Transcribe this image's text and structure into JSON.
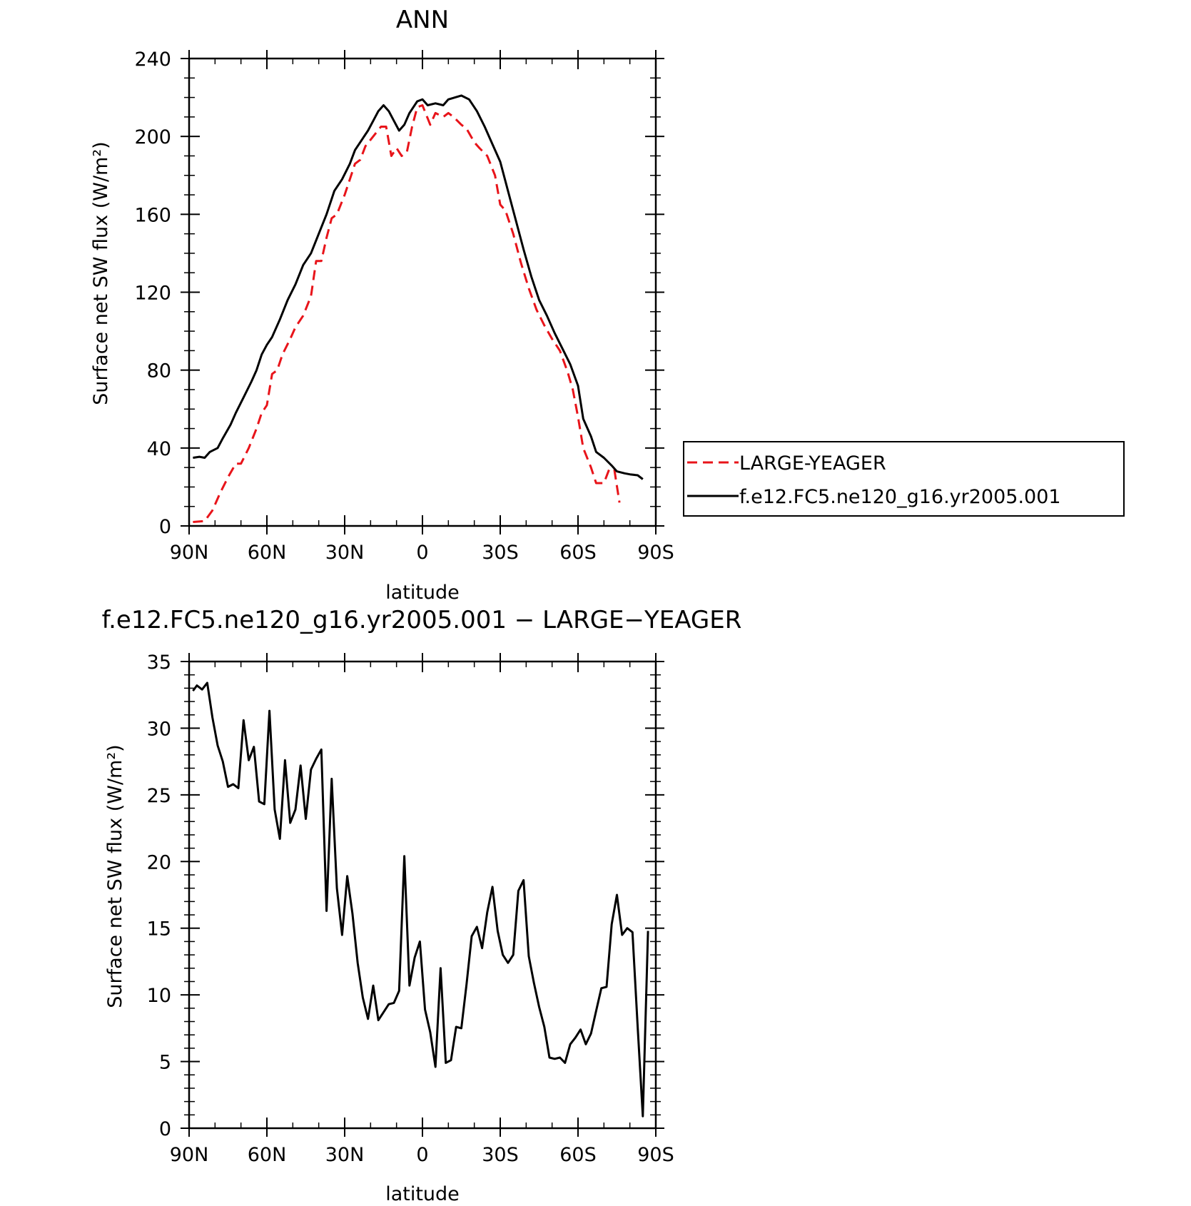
{
  "chart_data": [
    {
      "type": "line",
      "title": "ANN",
      "xlabel": "latitude",
      "ylabel": "Surface net SW flux (W/m²)",
      "xlim": [
        90,
        -90
      ],
      "ylim": [
        0,
        240
      ],
      "x_ticks": [
        90,
        60,
        30,
        0,
        -30,
        -60,
        -90
      ],
      "x_tick_labels": [
        "90N",
        "60N",
        "30N",
        "0",
        "30S",
        "60S",
        "90S"
      ],
      "y_ticks": [
        0,
        40,
        80,
        120,
        160,
        200,
        240
      ],
      "y_tick_labels": [
        "0",
        "40",
        "80",
        "120",
        "160",
        "200",
        "240"
      ],
      "legend_position": "right",
      "series": [
        {
          "name": "LARGE-YEAGER",
          "color": "#e8141a",
          "dash": "dashed",
          "points": [
            [
              88.5,
              2
            ],
            [
              84,
              2.5
            ],
            [
              81,
              8
            ],
            [
              78,
              17
            ],
            [
              75,
              25
            ],
            [
              72,
              32
            ],
            [
              70,
              32
            ],
            [
              67,
              40
            ],
            [
              64,
              50
            ],
            [
              62,
              58
            ],
            [
              60,
              62
            ],
            [
              58,
              78
            ],
            [
              56,
              80
            ],
            [
              54,
              88
            ],
            [
              51,
              96
            ],
            [
              49,
              102
            ],
            [
              46,
              108
            ],
            [
              43,
              118
            ],
            [
              41,
              136
            ],
            [
              39,
              136
            ],
            [
              37,
              148
            ],
            [
              35,
              158
            ],
            [
              33,
              160
            ],
            [
              30,
              170
            ],
            [
              28,
              178
            ],
            [
              26,
              186
            ],
            [
              24,
              188
            ],
            [
              22,
              195
            ],
            [
              19,
              200
            ],
            [
              16,
              205
            ],
            [
              14,
              205
            ],
            [
              12,
              190
            ],
            [
              10,
              194
            ],
            [
              8,
              190
            ],
            [
              6,
              192
            ],
            [
              4,
              205
            ],
            [
              2,
              215
            ],
            [
              0,
              216
            ],
            [
              -3,
              206
            ],
            [
              -5,
              212
            ],
            [
              -8,
              210
            ],
            [
              -10,
              212
            ],
            [
              -12,
              210
            ],
            [
              -15,
              206
            ],
            [
              -17,
              204
            ],
            [
              -20,
              197
            ],
            [
              -22,
              194
            ],
            [
              -25,
              190
            ],
            [
              -28,
              180
            ],
            [
              -30,
              165
            ],
            [
              -32,
              162
            ],
            [
              -35,
              150
            ],
            [
              -38,
              135
            ],
            [
              -41,
              122
            ],
            [
              -44,
              111
            ],
            [
              -47,
              103
            ],
            [
              -50,
              96
            ],
            [
              -53,
              90
            ],
            [
              -56,
              79
            ],
            [
              -58,
              70
            ],
            [
              -60,
              56
            ],
            [
              -62,
              40
            ],
            [
              -65,
              30
            ],
            [
              -67,
              22
            ],
            [
              -70,
              22
            ],
            [
              -72,
              29
            ],
            [
              -74,
              29
            ],
            [
              -76,
              12
            ]
          ]
        },
        {
          "name": "f.e12.FC5.ne120_g16.yr2005.001",
          "color": "#000000",
          "dash": "solid",
          "points": [
            [
              88.5,
              35
            ],
            [
              86,
              35.5
            ],
            [
              84,
              35
            ],
            [
              82,
              38
            ],
            [
              79,
              40
            ],
            [
              77,
              45
            ],
            [
              74,
              52
            ],
            [
              72,
              58
            ],
            [
              69,
              66
            ],
            [
              66,
              74
            ],
            [
              64,
              80
            ],
            [
              62,
              88
            ],
            [
              60,
              93
            ],
            [
              58,
              97
            ],
            [
              55,
              106
            ],
            [
              52,
              116
            ],
            [
              49,
              124
            ],
            [
              46,
              134
            ],
            [
              43,
              140
            ],
            [
              40,
              150
            ],
            [
              37,
              160
            ],
            [
              34,
              172
            ],
            [
              31,
              178
            ],
            [
              28,
              186
            ],
            [
              26,
              193
            ],
            [
              23,
              199
            ],
            [
              21,
              203
            ],
            [
              19,
              208
            ],
            [
              17,
              213
            ],
            [
              15,
              216
            ],
            [
              13,
              213
            ],
            [
              11,
              208
            ],
            [
              9,
              203
            ],
            [
              7,
              206
            ],
            [
              5,
              212
            ],
            [
              2,
              218
            ],
            [
              0,
              219
            ],
            [
              -2,
              216
            ],
            [
              -5,
              217
            ],
            [
              -8,
              216
            ],
            [
              -10,
              219
            ],
            [
              -15,
              221
            ],
            [
              -18,
              219
            ],
            [
              -21,
              213
            ],
            [
              -24,
              205
            ],
            [
              -27,
              196
            ],
            [
              -30,
              187
            ],
            [
              -33,
              172
            ],
            [
              -36,
              157
            ],
            [
              -39,
              142
            ],
            [
              -42,
              128
            ],
            [
              -45,
              116
            ],
            [
              -48,
              108
            ],
            [
              -51,
              99
            ],
            [
              -54,
              91
            ],
            [
              -57,
              83
            ],
            [
              -60,
              72
            ],
            [
              -62,
              55
            ],
            [
              -65,
              46
            ],
            [
              -67,
              38
            ],
            [
              -70,
              35
            ],
            [
              -73,
              31
            ],
            [
              -75,
              28
            ],
            [
              -78,
              27
            ],
            [
              -80,
              26.5
            ],
            [
              -83,
              26
            ],
            [
              -85,
              24
            ]
          ]
        }
      ]
    },
    {
      "type": "line",
      "title": "f.e12.FC5.ne120_g16.yr2005.001 − LARGE−YEAGER",
      "xlabel": "latitude",
      "ylabel": "Surface net SW flux (W/m²)",
      "xlim": [
        90,
        -90
      ],
      "ylim": [
        0,
        35
      ],
      "x_ticks": [
        90,
        60,
        30,
        0,
        -30,
        -60,
        -90
      ],
      "x_tick_labels": [
        "90N",
        "60N",
        "30N",
        "0",
        "30S",
        "60S",
        "90S"
      ],
      "y_ticks": [
        0,
        5,
        10,
        15,
        20,
        25,
        30,
        35
      ],
      "y_tick_labels": [
        "0",
        "5",
        "10",
        "15",
        "20",
        "25",
        "30",
        "35"
      ],
      "series": [
        {
          "color": "#000000",
          "dash": "solid",
          "points": [
            [
              88.5,
              32.8
            ],
            [
              87,
              33.2
            ],
            [
              85,
              32.9
            ],
            [
              83,
              33.4
            ],
            [
              81,
              30.8
            ],
            [
              79,
              28.7
            ],
            [
              77,
              27.5
            ],
            [
              75,
              25.6
            ],
            [
              73,
              25.8
            ],
            [
              71,
              25.5
            ],
            [
              69,
              30.6
            ],
            [
              67,
              27.6
            ],
            [
              65,
              28.6
            ],
            [
              63,
              24.5
            ],
            [
              61,
              24.3
            ],
            [
              59,
              31.3
            ],
            [
              57,
              23.9
            ],
            [
              55,
              21.7
            ],
            [
              53,
              27.6
            ],
            [
              51,
              22.9
            ],
            [
              49,
              23.9
            ],
            [
              47,
              27.2
            ],
            [
              45,
              23.2
            ],
            [
              43,
              26.9
            ],
            [
              41,
              27.7
            ],
            [
              39,
              28.4
            ],
            [
              37,
              16.3
            ],
            [
              35,
              26.2
            ],
            [
              33,
              18
            ],
            [
              31,
              14.5
            ],
            [
              29,
              18.9
            ],
            [
              27,
              16.1
            ],
            [
              25,
              12.4
            ],
            [
              23,
              9.8
            ],
            [
              21,
              8.2
            ],
            [
              19,
              10.7
            ],
            [
              17,
              8.1
            ],
            [
              15,
              8.7
            ],
            [
              13,
              9.3
            ],
            [
              11,
              9.4
            ],
            [
              9,
              10.3
            ],
            [
              7,
              20.4
            ],
            [
              5,
              10.7
            ],
            [
              3,
              12.8
            ],
            [
              1,
              14
            ],
            [
              -1,
              8.9
            ],
            [
              -3,
              7.2
            ],
            [
              -5,
              4.6
            ],
            [
              -7,
              12
            ],
            [
              -9,
              4.9
            ],
            [
              -11,
              5.1
            ],
            [
              -13,
              7.6
            ],
            [
              -15,
              7.5
            ],
            [
              -17,
              10.8
            ],
            [
              -19,
              14.4
            ],
            [
              -21,
              15.1
            ],
            [
              -23,
              13.5
            ],
            [
              -25,
              16.2
            ],
            [
              -27,
              18.1
            ],
            [
              -29,
              14.8
            ],
            [
              -31,
              13
            ],
            [
              -33,
              12.4
            ],
            [
              -35,
              13
            ],
            [
              -37,
              17.8
            ],
            [
              -39,
              18.6
            ],
            [
              -41,
              12.9
            ],
            [
              -43,
              10.9
            ],
            [
              -45,
              9.1
            ],
            [
              -47,
              7.6
            ],
            [
              -49,
              5.3
            ],
            [
              -51,
              5.2
            ],
            [
              -53,
              5.3
            ],
            [
              -55,
              4.9
            ],
            [
              -57,
              6.3
            ],
            [
              -59,
              6.8
            ],
            [
              -61,
              7.4
            ],
            [
              -63,
              6.3
            ],
            [
              -65,
              7.1
            ],
            [
              -67,
              8.8
            ],
            [
              -69,
              10.5
            ],
            [
              -71,
              10.6
            ],
            [
              -73,
              15.3
            ],
            [
              -75,
              17.5
            ],
            [
              -77,
              14.5
            ],
            [
              -79,
              15
            ],
            [
              -81,
              14.7
            ],
            [
              -83,
              7.6
            ],
            [
              -85,
              0.9
            ],
            [
              -87,
              14.8
            ]
          ]
        }
      ]
    }
  ]
}
